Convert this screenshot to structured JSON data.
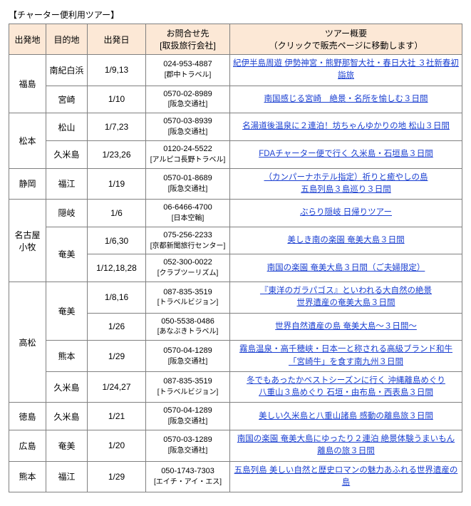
{
  "caption": "【チャーター便利用ツアー】",
  "headers": {
    "h0": "出発地",
    "h1": "目的地",
    "h2": "出発日",
    "h3_line1": "お問合せ先",
    "h3_line2": "[取扱旅行会社]",
    "h4_line1": "ツアー概要",
    "h4_line2": "（クリックで販売ページに移動します）"
  },
  "rows": [
    {
      "origin": "福島",
      "origin_rowspan": 2,
      "dest": "南紀白浜",
      "date": "1/9,13",
      "phone": "024-953-4887",
      "agency": "[郡中トラベル]",
      "summary": [
        "紀伊半島周遊 伊勢神宮・熊野那智大社・春日大社 ３社新春初詣旅"
      ]
    },
    {
      "dest": "宮崎",
      "date": "1/10",
      "phone": "0570-02-8989",
      "agency": "[阪急交通社]",
      "summary": [
        "南国感じる宮崎　絶景・名所を愉しむ３日間"
      ]
    },
    {
      "origin": "松本",
      "origin_rowspan": 2,
      "dest": "松山",
      "date": "1/7,23",
      "phone": "0570-03-8939",
      "agency": "[阪急交通社]",
      "summary": [
        "名湯道後温泉に２連泊！坊ちゃんゆかりの地 松山３日間"
      ]
    },
    {
      "dest": "久米島",
      "date": "1/23,26",
      "phone": "0120-24-5522",
      "agency": "[アルピコ長野トラベル]",
      "agency_small": true,
      "summary": [
        "FDAチャーター便で行く 久米島・石垣島３日間"
      ]
    },
    {
      "origin": "静岡",
      "origin_rowspan": 1,
      "dest": "福江",
      "date": "1/19",
      "phone": "0570-01-8689",
      "agency": "[阪急交通社]",
      "summary": [
        "（カンパーナホテル指定）祈りと癒やしの島",
        "五島列島３島巡り３日間"
      ]
    },
    {
      "origin": "名古屋小牧",
      "origin_rowspan": 3,
      "dest": "隠岐",
      "date": "1/6",
      "phone": "06-6466-4700",
      "agency": "[日本空輸]",
      "summary": [
        "ぶらり隠岐 日帰りツアー"
      ]
    },
    {
      "dest": "奄美",
      "dest_rowspan": 2,
      "date": "1/6,30",
      "phone": "075-256-2233",
      "agency": "[京都新聞旅行センター]",
      "agency_small": true,
      "summary": [
        "美しき南の楽園 奄美大島３日間"
      ]
    },
    {
      "date": "1/12,18,28",
      "phone": "052-300-0022",
      "agency": "[クラブツーリズム]",
      "agency_small": true,
      "summary": [
        "南国の楽園 奄美大島３日間（ご夫婦限定）"
      ]
    },
    {
      "origin": "高松",
      "origin_rowspan": 4,
      "dest": "奄美",
      "dest_rowspan": 2,
      "date": "1/8,16",
      "phone": "087-835-3519",
      "agency": "[トラベルビジョン]",
      "agency_small": true,
      "summary": [
        "『東洋のガラパゴス』といわれる大自然の絶景",
        "世界遺産の奄美大島３日間"
      ]
    },
    {
      "date": "1/26",
      "phone": "050-5538-0486",
      "agency": "[あなぶきトラベル]",
      "agency_small": true,
      "summary": [
        "世界自然遺産の島 奄美大島～３日間～"
      ]
    },
    {
      "dest": "熊本",
      "date": "1/29",
      "phone": "0570-04-1289",
      "agency": "[阪急交通社]",
      "summary": [
        "霧島温泉・高千穂峡・日本一と称される高級ブランド和牛",
        "「宮崎牛」を食す南九州３日間"
      ]
    },
    {
      "dest": "久米島",
      "date": "1/24,27",
      "phone": "087-835-3519",
      "agency": "[トラベルビジョン]",
      "agency_small": true,
      "summary": [
        "冬でもあったかベストシーズンに行く 沖縄離島めぐり",
        "八重山３島めぐり 石垣・由布島・西表島３日間"
      ]
    },
    {
      "origin": "徳島",
      "origin_rowspan": 1,
      "dest": "久米島",
      "date": "1/21",
      "phone": "0570-04-1289",
      "agency": "[阪急交通社]",
      "summary": [
        "美しい久米島と八重山諸島 感動の離島旅３日間"
      ]
    },
    {
      "origin": "広島",
      "origin_rowspan": 1,
      "dest": "奄美",
      "date": "1/20",
      "phone": "0570-03-1289",
      "agency": "[阪急交通社]",
      "summary": [
        "南国の楽園 奄美大島にゆったり２連泊 絶景体験うまいもん",
        "離島の旅３日間"
      ]
    },
    {
      "origin": "熊本",
      "origin_rowspan": 1,
      "dest": "福江",
      "date": "1/29",
      "phone": "050-1743-7303",
      "agency": "[エイチ・アイ・エス]",
      "agency_small": true,
      "summary": [
        "五島列島 美しい自然と歴史ロマンの魅力あふれる世界遺産の",
        "島"
      ]
    }
  ]
}
